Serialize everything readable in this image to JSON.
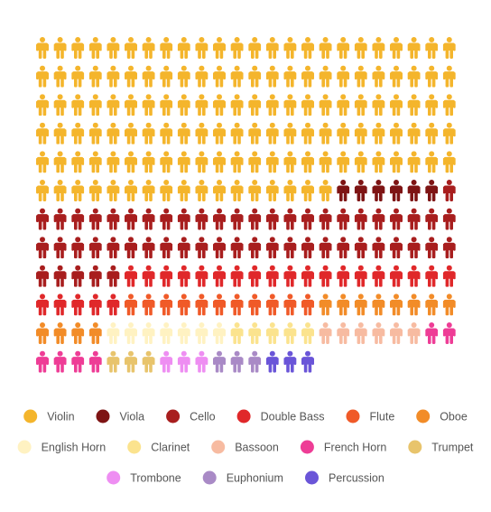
{
  "chart_data": {
    "type": "pictogram",
    "unit_icon": "person-icon",
    "grid": {
      "columns": 24,
      "rows": 12
    },
    "series": [
      {
        "name": "Violin",
        "count": 137,
        "color": "#F4B52C"
      },
      {
        "name": "Viola",
        "count": 6,
        "color": "#7E1414"
      },
      {
        "name": "Cello",
        "count": 54,
        "color": "#A81E1E"
      },
      {
        "name": "Double Bass",
        "count": 24,
        "color": "#E0282A"
      },
      {
        "name": "Flute",
        "count": 11,
        "color": "#F05A28"
      },
      {
        "name": "Oboe",
        "count": 12,
        "color": "#F28C28"
      },
      {
        "name": "English Horn",
        "count": 7,
        "color": "#FFF2C2"
      },
      {
        "name": "Clarinet",
        "count": 5,
        "color": "#FBE38E"
      },
      {
        "name": "Bassoon",
        "count": 6,
        "color": "#F7BBA1"
      },
      {
        "name": "French Horn",
        "count": 6,
        "color": "#EE3D96"
      },
      {
        "name": "Trumpet",
        "count": 3,
        "color": "#E8C46C"
      },
      {
        "name": "Trombone",
        "count": 3,
        "color": "#EE8EF2"
      },
      {
        "name": "Euphonium",
        "count": 3,
        "color": "#A98AC6"
      },
      {
        "name": "Percussion",
        "count": 3,
        "color": "#6A55D8"
      }
    ],
    "legend_position": "bottom"
  }
}
